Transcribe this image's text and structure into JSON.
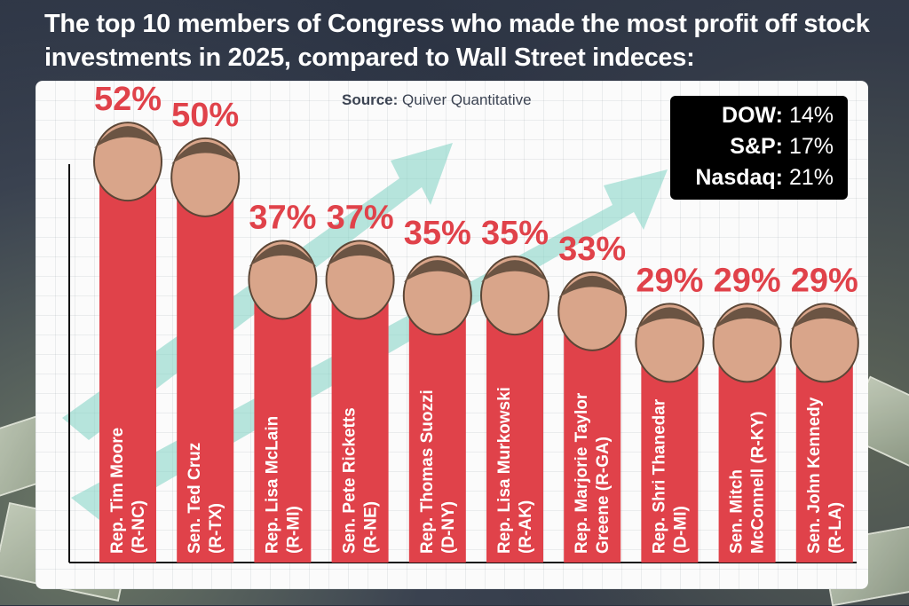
{
  "headline": "The top 10 members of Congress who made the most profit off stock investments in 2025, compared to Wall Street indeces:",
  "source": {
    "key": "Source:",
    "value": "Quiver Quantitative"
  },
  "indices": [
    {
      "key": "DOW:",
      "value": "14%"
    },
    {
      "key": "S&P:",
      "value": "17%"
    },
    {
      "key": "Nasdaq:",
      "value": "21%"
    }
  ],
  "colors": {
    "bar": "#e0424a",
    "value_text": "#e0424a",
    "arrow": "#7fd3c4",
    "panel": "#fbfbfb",
    "index_box": "#000000"
  },
  "chart_data": {
    "type": "bar",
    "orientation": "vertical",
    "ylim": [
      0,
      60
    ],
    "grid": true,
    "categories": [
      [
        "Rep. Tim Moore",
        "(R-NC)"
      ],
      [
        "Sen. Ted Cruz",
        "(R-TX)"
      ],
      [
        "Rep. Lisa McLain",
        "(R-MI)"
      ],
      [
        "Sen. Pete Ricketts",
        "(R-NE)"
      ],
      [
        "Rep. Thomas Suozzi",
        "(D-NY)"
      ],
      [
        "Rep. Lisa Murkowski",
        "(R-AK)"
      ],
      [
        "Rep. Marjorie Taylor",
        "Greene (R-GA)"
      ],
      [
        "Rep. Shri Thanedar",
        "(D-MI)"
      ],
      [
        "Sen. Mitch",
        "McConnell (R-KY)"
      ],
      [
        "Sen. John Kennedy",
        "(R-LA)"
      ]
    ],
    "values": [
      52,
      50,
      37,
      37,
      35,
      35,
      33,
      29,
      29,
      29
    ],
    "value_labels": [
      "52%",
      "50%",
      "37%",
      "37%",
      "35%",
      "35%",
      "33%",
      "29%",
      "29%",
      "29%"
    ]
  }
}
